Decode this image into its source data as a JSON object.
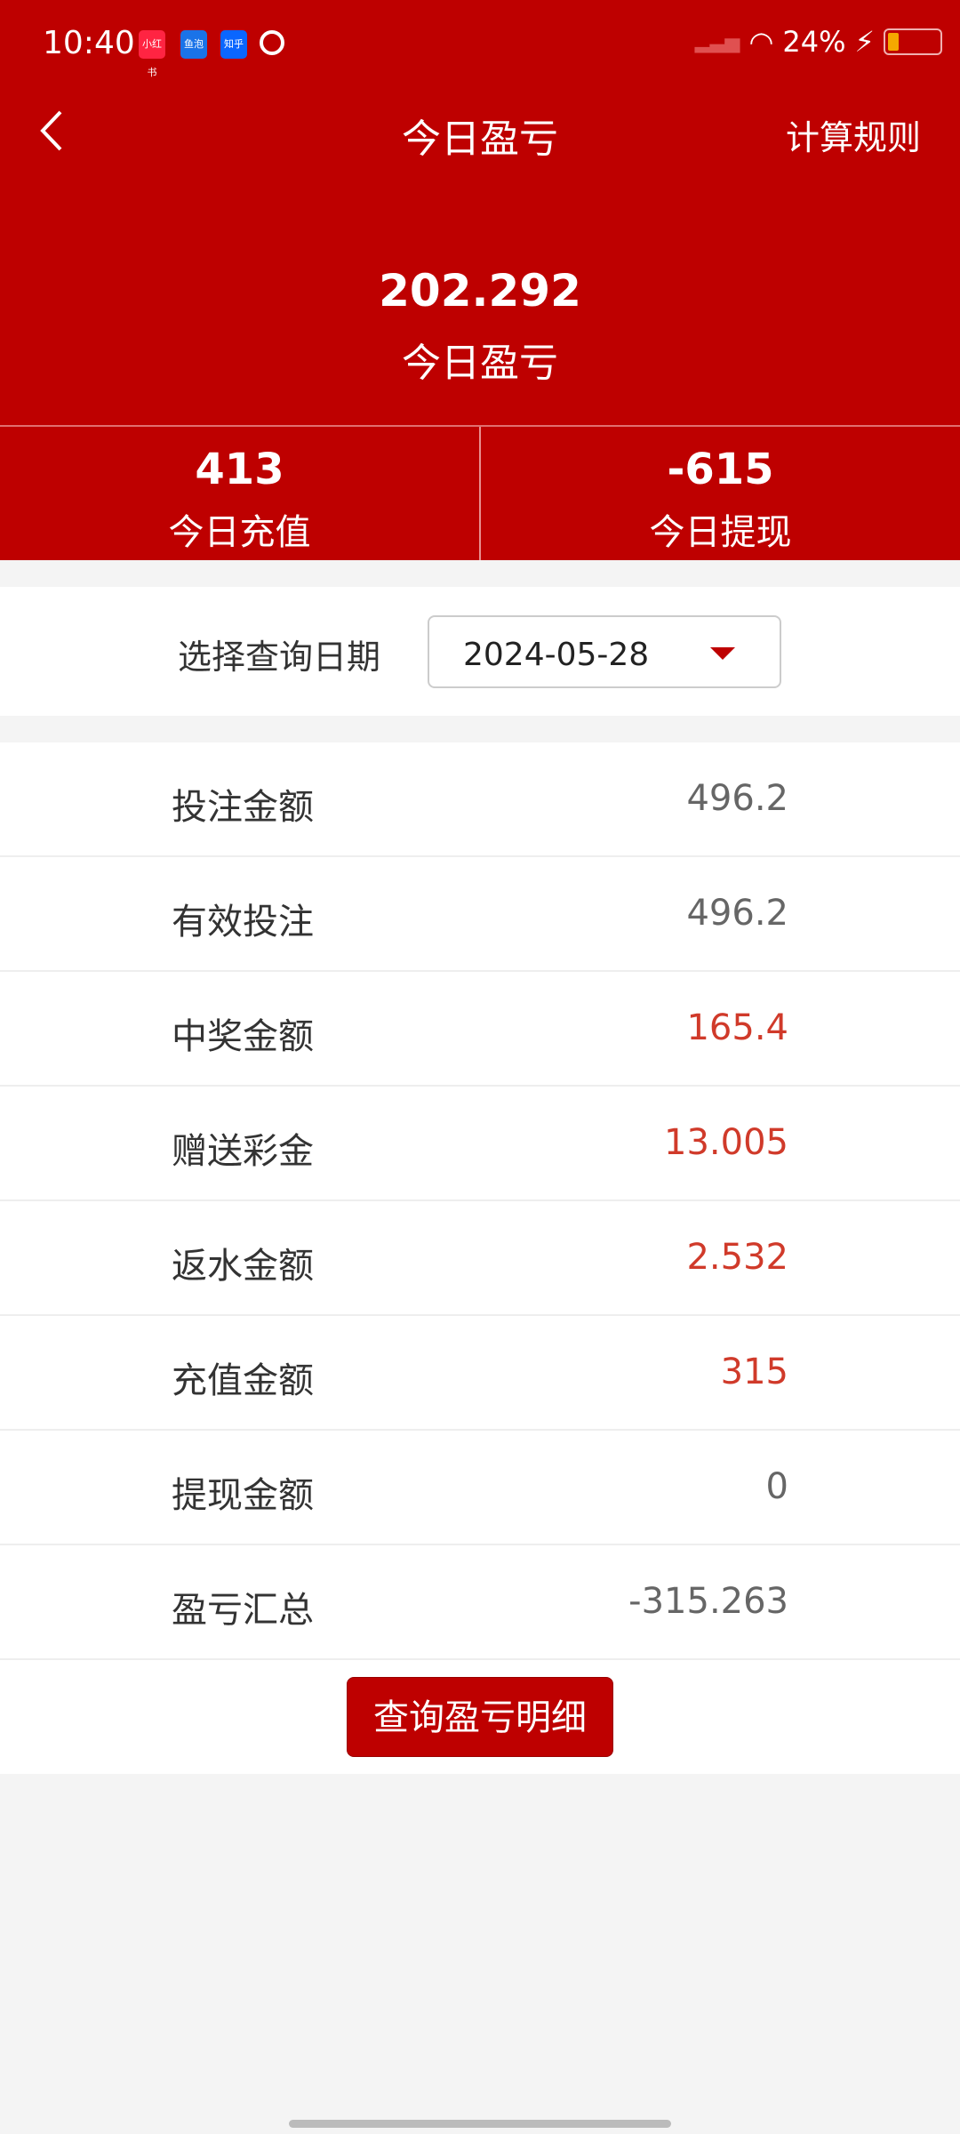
{
  "status": {
    "time": "10:40",
    "battery": "24%",
    "battery_level": 24,
    "apps": [
      "小红书",
      "鱼泡",
      "知乎"
    ]
  },
  "header": {
    "title": "今日盈亏",
    "rule_label": "计算规则"
  },
  "summary": {
    "value": "202.292",
    "label": "今日盈亏"
  },
  "stats": [
    {
      "value": "413",
      "label": "今日充值"
    },
    {
      "value": "-615",
      "label": "今日提现"
    }
  ],
  "date": {
    "label": "选择查询日期",
    "value": "2024-05-28"
  },
  "rows": [
    {
      "label": "投注金额",
      "value": "496.2",
      "highlight": false
    },
    {
      "label": "有效投注",
      "value": "496.2",
      "highlight": false
    },
    {
      "label": "中奖金额",
      "value": "165.4",
      "highlight": true
    },
    {
      "label": "赠送彩金",
      "value": "13.005",
      "highlight": true
    },
    {
      "label": "返水金额",
      "value": "2.532",
      "highlight": true
    },
    {
      "label": "充值金额",
      "value": "315",
      "highlight": true
    },
    {
      "label": "提现金额",
      "value": "0",
      "highlight": false
    },
    {
      "label": "盈亏汇总",
      "value": "-315.263",
      "highlight": false
    }
  ],
  "button": {
    "label": "查询盈亏明细"
  },
  "colors": {
    "primary": "#be0000",
    "highlight": "#d03a2a"
  }
}
